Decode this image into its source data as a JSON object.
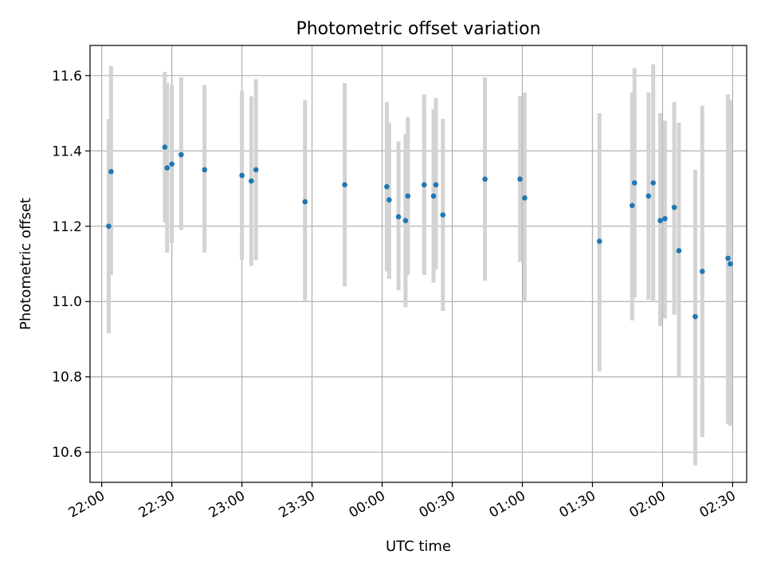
{
  "chart_data": {
    "type": "scatter",
    "title": "Photometric offset variation",
    "xlabel": "UTC time",
    "ylabel": "Photometric offset",
    "x_axis": {
      "start": "21:55",
      "end": "02:36",
      "ticks": [
        "22:00",
        "22:30",
        "23:00",
        "23:30",
        "00:00",
        "00:30",
        "01:00",
        "01:30",
        "02:00",
        "02:30"
      ]
    },
    "ylim": [
      10.52,
      11.68
    ],
    "yticks": [
      "10.6",
      "10.8",
      "11.0",
      "11.2",
      "11.4",
      "11.6"
    ],
    "grid": true,
    "colors": {
      "points": "#1f77b4",
      "errorbars": "#d3d3d3",
      "grid": "#b0b0b0"
    },
    "points": [
      {
        "t": "22:03",
        "y": 11.2,
        "lo": 10.915,
        "hi": 11.485
      },
      {
        "t": "22:04",
        "y": 11.345,
        "lo": 11.07,
        "hi": 11.625
      },
      {
        "t": "22:27",
        "y": 11.41,
        "lo": 11.21,
        "hi": 11.61
      },
      {
        "t": "22:28",
        "y": 11.355,
        "lo": 11.13,
        "hi": 11.58
      },
      {
        "t": "22:30",
        "y": 11.365,
        "lo": 11.155,
        "hi": 11.575
      },
      {
        "t": "22:34",
        "y": 11.39,
        "lo": 11.19,
        "hi": 11.595
      },
      {
        "t": "22:44",
        "y": 11.35,
        "lo": 11.13,
        "hi": 11.575
      },
      {
        "t": "23:00",
        "y": 11.335,
        "lo": 11.11,
        "hi": 11.56
      },
      {
        "t": "23:04",
        "y": 11.32,
        "lo": 11.095,
        "hi": 11.545
      },
      {
        "t": "23:06",
        "y": 11.35,
        "lo": 11.11,
        "hi": 11.59
      },
      {
        "t": "23:27",
        "y": 11.265,
        "lo": 11.0,
        "hi": 11.535
      },
      {
        "t": "23:44",
        "y": 11.31,
        "lo": 11.04,
        "hi": 11.58
      },
      {
        "t": "00:02",
        "y": 11.305,
        "lo": 11.08,
        "hi": 11.53
      },
      {
        "t": "00:03",
        "y": 11.27,
        "lo": 11.06,
        "hi": 11.475
      },
      {
        "t": "00:07",
        "y": 11.225,
        "lo": 11.03,
        "hi": 11.425
      },
      {
        "t": "00:10",
        "y": 11.215,
        "lo": 10.985,
        "hi": 11.445
      },
      {
        "t": "00:11",
        "y": 11.28,
        "lo": 11.07,
        "hi": 11.49
      },
      {
        "t": "00:18",
        "y": 11.31,
        "lo": 11.07,
        "hi": 11.55
      },
      {
        "t": "00:22",
        "y": 11.28,
        "lo": 11.05,
        "hi": 11.51
      },
      {
        "t": "00:23",
        "y": 11.31,
        "lo": 11.085,
        "hi": 11.54
      },
      {
        "t": "00:26",
        "y": 11.23,
        "lo": 10.975,
        "hi": 11.485
      },
      {
        "t": "00:44",
        "y": 11.325,
        "lo": 11.055,
        "hi": 11.595
      },
      {
        "t": "00:59",
        "y": 11.325,
        "lo": 11.105,
        "hi": 11.545
      },
      {
        "t": "01:01",
        "y": 11.275,
        "lo": 11.0,
        "hi": 11.555
      },
      {
        "t": "01:33",
        "y": 11.16,
        "lo": 10.815,
        "hi": 11.5
      },
      {
        "t": "01:47",
        "y": 11.255,
        "lo": 10.95,
        "hi": 11.555
      },
      {
        "t": "01:48",
        "y": 11.315,
        "lo": 11.01,
        "hi": 11.62
      },
      {
        "t": "01:54",
        "y": 11.28,
        "lo": 11.005,
        "hi": 11.555
      },
      {
        "t": "01:56",
        "y": 11.315,
        "lo": 11.0,
        "hi": 11.63
      },
      {
        "t": "01:59",
        "y": 11.215,
        "lo": 10.935,
        "hi": 11.5
      },
      {
        "t": "02:01",
        "y": 11.22,
        "lo": 10.955,
        "hi": 11.48
      },
      {
        "t": "02:05",
        "y": 11.25,
        "lo": 10.965,
        "hi": 11.53
      },
      {
        "t": "02:07",
        "y": 11.135,
        "lo": 10.8,
        "hi": 11.475
      },
      {
        "t": "02:14",
        "y": 10.96,
        "lo": 10.565,
        "hi": 11.35
      },
      {
        "t": "02:17",
        "y": 11.08,
        "lo": 10.64,
        "hi": 11.52
      },
      {
        "t": "02:28",
        "y": 11.115,
        "lo": 10.675,
        "hi": 11.55
      },
      {
        "t": "02:29",
        "y": 11.1,
        "lo": 10.67,
        "hi": 11.535
      }
    ]
  }
}
